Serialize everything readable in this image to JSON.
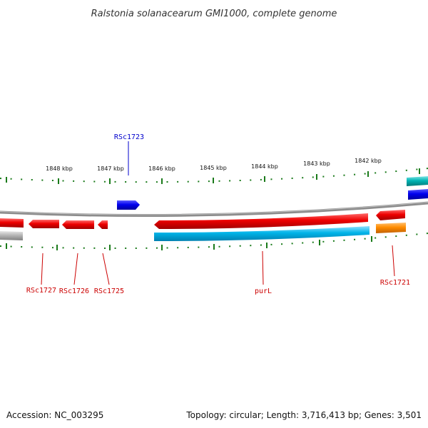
{
  "title": "Ralstonia solanacearum GMI1000, complete genome",
  "ruler": {
    "labels": [
      "1848 kbp",
      "1847 kbp",
      "1846 kbp",
      "1845 kbp",
      "1844 kbp",
      "1843 kbp",
      "1842 kbp"
    ],
    "tick_color": "#1a7a1a"
  },
  "genes": {
    "upper": [
      {
        "label": "RSc1723",
        "color": "#0000cc"
      }
    ],
    "lower": [
      {
        "label": "RSc1727",
        "color": "#cc0000"
      },
      {
        "label": "RSc1726",
        "color": "#cc0000"
      },
      {
        "label": "RSc1725",
        "color": "#cc0000"
      },
      {
        "label": "purL",
        "color": "#cc0000"
      },
      {
        "label": "RSc1721",
        "color": "#cc0000"
      }
    ]
  },
  "colors": {
    "backbone": "#8c8c8c",
    "reverse_cds": "#ee0000",
    "forward_cds": "#0000ee",
    "rna_cyan": "#00b4e8",
    "teal": "#00b3b3",
    "orange": "#ff8c00",
    "grey": "#b0b0b0"
  },
  "footer": {
    "accession": "Accession: NC_003295",
    "topology": "Topology: circular; Length: 3,716,413 bp; Genes: 3,501"
  }
}
